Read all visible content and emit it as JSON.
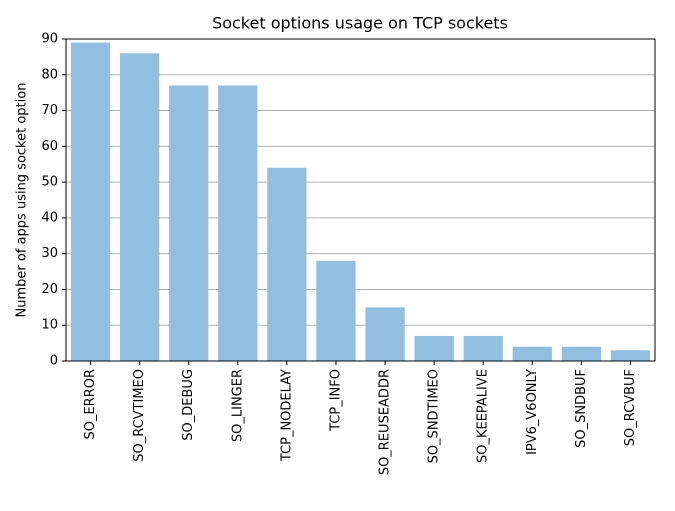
{
  "chart_data": {
    "type": "bar",
    "title": "Socket options usage on TCP sockets",
    "y_label": "Number of apps using socket option",
    "categories": [
      "SO_ERROR",
      "SO_RCVTIMEO",
      "SO_DEBUG",
      "SO_LINGER",
      "TCP_NODELAY",
      "TCP_INFO",
      "SO_REUSEADDR",
      "SO_SNDTIMEO",
      "SO_KEEPALIVE",
      "IPV6_V6ONLY",
      "SO_SNDBUF",
      "SO_RCVBUF"
    ],
    "values": [
      89,
      86,
      77,
      77,
      54,
      28,
      15,
      7,
      7,
      4,
      4,
      3
    ],
    "color": "#92bfdf",
    "ylim": [
      0,
      90
    ],
    "yticks": [
      0,
      10,
      20,
      30,
      40,
      50,
      60,
      70,
      80,
      90
    ],
    "grid": true
  }
}
